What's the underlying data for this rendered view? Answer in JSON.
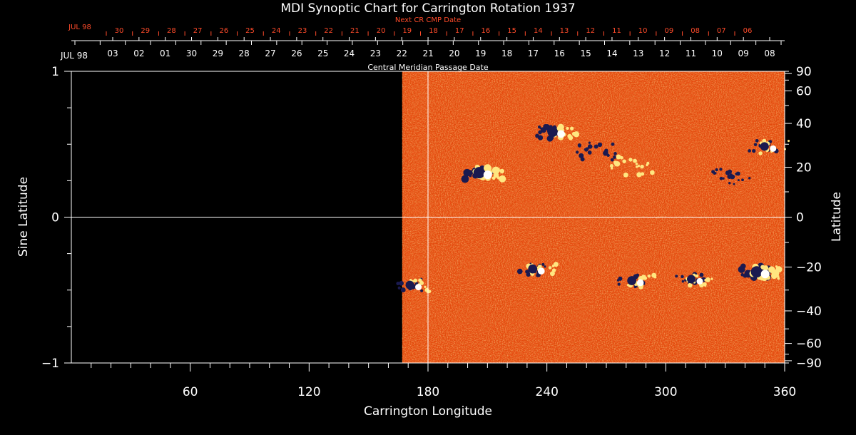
{
  "chart_data": {
    "type": "heatmap",
    "title": "MDI Synoptic Chart for Carrington Rotation 1937",
    "xlabel": "Carrington Longitude",
    "ylabel_left": "Sine Latitude",
    "ylabel_right": "Latitude",
    "xlim": [
      0,
      360
    ],
    "ylim_sine": [
      -1,
      1
    ],
    "x_ticks": [
      60,
      120,
      180,
      240,
      300,
      360
    ],
    "y_ticks_left": [
      {
        "v": -1,
        "label": "−1"
      },
      {
        "v": 0,
        "label": "0"
      },
      {
        "v": 1,
        "label": "1"
      }
    ],
    "y_ticks_right": [
      {
        "lat": 90,
        "label": "90"
      },
      {
        "lat": 60,
        "label": "60"
      },
      {
        "lat": 40,
        "label": "40"
      },
      {
        "lat": 20,
        "label": "20"
      },
      {
        "lat": 0,
        "label": "0"
      },
      {
        "lat": -20,
        "label": "−20"
      },
      {
        "lat": -40,
        "label": "−40"
      },
      {
        "lat": -60,
        "label": "−60"
      },
      {
        "lat": -90,
        "label": "−90"
      }
    ],
    "data_coverage_longitude": [
      167,
      360
    ],
    "marker_longitude": 180,
    "top_axis": {
      "cmp_label": "Central Meridian Passage Date",
      "cmp_month_label": "JUL 98",
      "cmp_dates": [
        "03",
        "02",
        "01",
        "30",
        "29",
        "28",
        "27",
        "26",
        "25",
        "24",
        "23",
        "22",
        "21",
        "20",
        "19",
        "18",
        "17",
        "16",
        "15",
        "14",
        "13",
        "12",
        "11",
        "10",
        "09",
        "08"
      ],
      "next_label": "Next CR CMP Date",
      "next_month_label": "JUL 98",
      "next_dates": [
        "30",
        "29",
        "28",
        "27",
        "26",
        "25",
        "24",
        "23",
        "22",
        "21",
        "20",
        "19",
        "18",
        "17",
        "16",
        "15",
        "14",
        "13",
        "12",
        "11",
        "10",
        "09",
        "08",
        "07",
        "06"
      ]
    },
    "active_regions": [
      {
        "lon": 208,
        "sinlat": 0.3,
        "polarity": "bipolar",
        "strength": 1.0
      },
      {
        "lon": 245,
        "sinlat": 0.58,
        "polarity": "bipolar",
        "strength": 0.8
      },
      {
        "lon": 265,
        "sinlat": 0.45,
        "polarity": "negative",
        "strength": 0.6
      },
      {
        "lon": 283,
        "sinlat": 0.35,
        "polarity": "positive",
        "strength": 0.6
      },
      {
        "lon": 333,
        "sinlat": 0.28,
        "polarity": "negative",
        "strength": 0.5
      },
      {
        "lon": 352,
        "sinlat": 0.48,
        "polarity": "bipolar",
        "strength": 0.5
      },
      {
        "lon": 173,
        "sinlat": -0.47,
        "polarity": "bipolar",
        "strength": 0.5
      },
      {
        "lon": 235,
        "sinlat": -0.36,
        "polarity": "bipolar",
        "strength": 0.6
      },
      {
        "lon": 285,
        "sinlat": -0.44,
        "polarity": "bipolar",
        "strength": 0.6
      },
      {
        "lon": 315,
        "sinlat": -0.43,
        "polarity": "bipolar",
        "strength": 0.5
      },
      {
        "lon": 348,
        "sinlat": -0.38,
        "polarity": "bipolar",
        "strength": 1.0
      }
    ]
  },
  "colors": {
    "background": "#000000",
    "axis": "#ffffff",
    "red_labels": "#ff4b2a",
    "field_base": "#e84a10",
    "positive": "#ffe680",
    "negative": "#1a1a50"
  }
}
